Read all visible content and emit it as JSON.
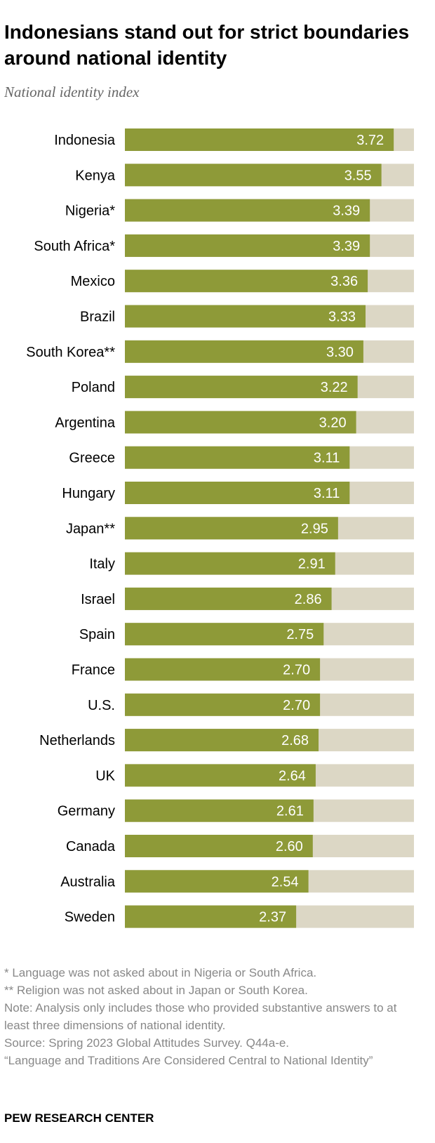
{
  "title": "Indonesians stand out for strict boundaries around national identity",
  "subtitle": "National identity index",
  "colors": {
    "bar": "#8e9a38",
    "track": "#dcd7c5",
    "value_text": "#ffffff",
    "category_text": "#000000",
    "note_text": "#888888"
  },
  "chart_data": {
    "type": "bar",
    "orientation": "horizontal",
    "title": "",
    "xlabel": "",
    "ylabel": "",
    "xlim": [
      0,
      4
    ],
    "grid": false,
    "categories": [
      "Indonesia",
      "Kenya",
      "Nigeria*",
      "South Africa*",
      "Mexico",
      "Brazil",
      "South Korea**",
      "Poland",
      "Argentina",
      "Greece",
      "Hungary",
      "Japan**",
      "Italy",
      "Israel",
      "Spain",
      "France",
      "U.S.",
      "Netherlands",
      "UK",
      "Germany",
      "Canada",
      "Australia",
      "Sweden"
    ],
    "values": [
      3.72,
      3.55,
      3.39,
      3.39,
      3.36,
      3.33,
      3.3,
      3.22,
      3.2,
      3.11,
      3.11,
      2.95,
      2.91,
      2.86,
      2.75,
      2.7,
      2.7,
      2.68,
      2.64,
      2.61,
      2.6,
      2.54,
      2.37
    ],
    "value_labels": [
      "3.72",
      "3.55",
      "3.39",
      "3.39",
      "3.36",
      "3.33",
      "3.30",
      "3.22",
      "3.20",
      "3.11",
      "3.11",
      "2.95",
      "2.91",
      "2.86",
      "2.75",
      "2.70",
      "2.70",
      "2.68",
      "2.64",
      "2.61",
      "2.60",
      "2.54",
      "2.37"
    ]
  },
  "notes": [
    "* Language was not asked about in Nigeria or South Africa.",
    "** Religion was not asked about in Japan or South Korea.",
    "Note: Analysis only includes those who provided substantive answers to at least three dimensions of national identity.",
    "Source: Spring 2023 Global Attitudes Survey. Q44a-e.",
    "“Language and Traditions Are Considered Central to National Identity”"
  ],
  "brand": "PEW RESEARCH CENTER"
}
